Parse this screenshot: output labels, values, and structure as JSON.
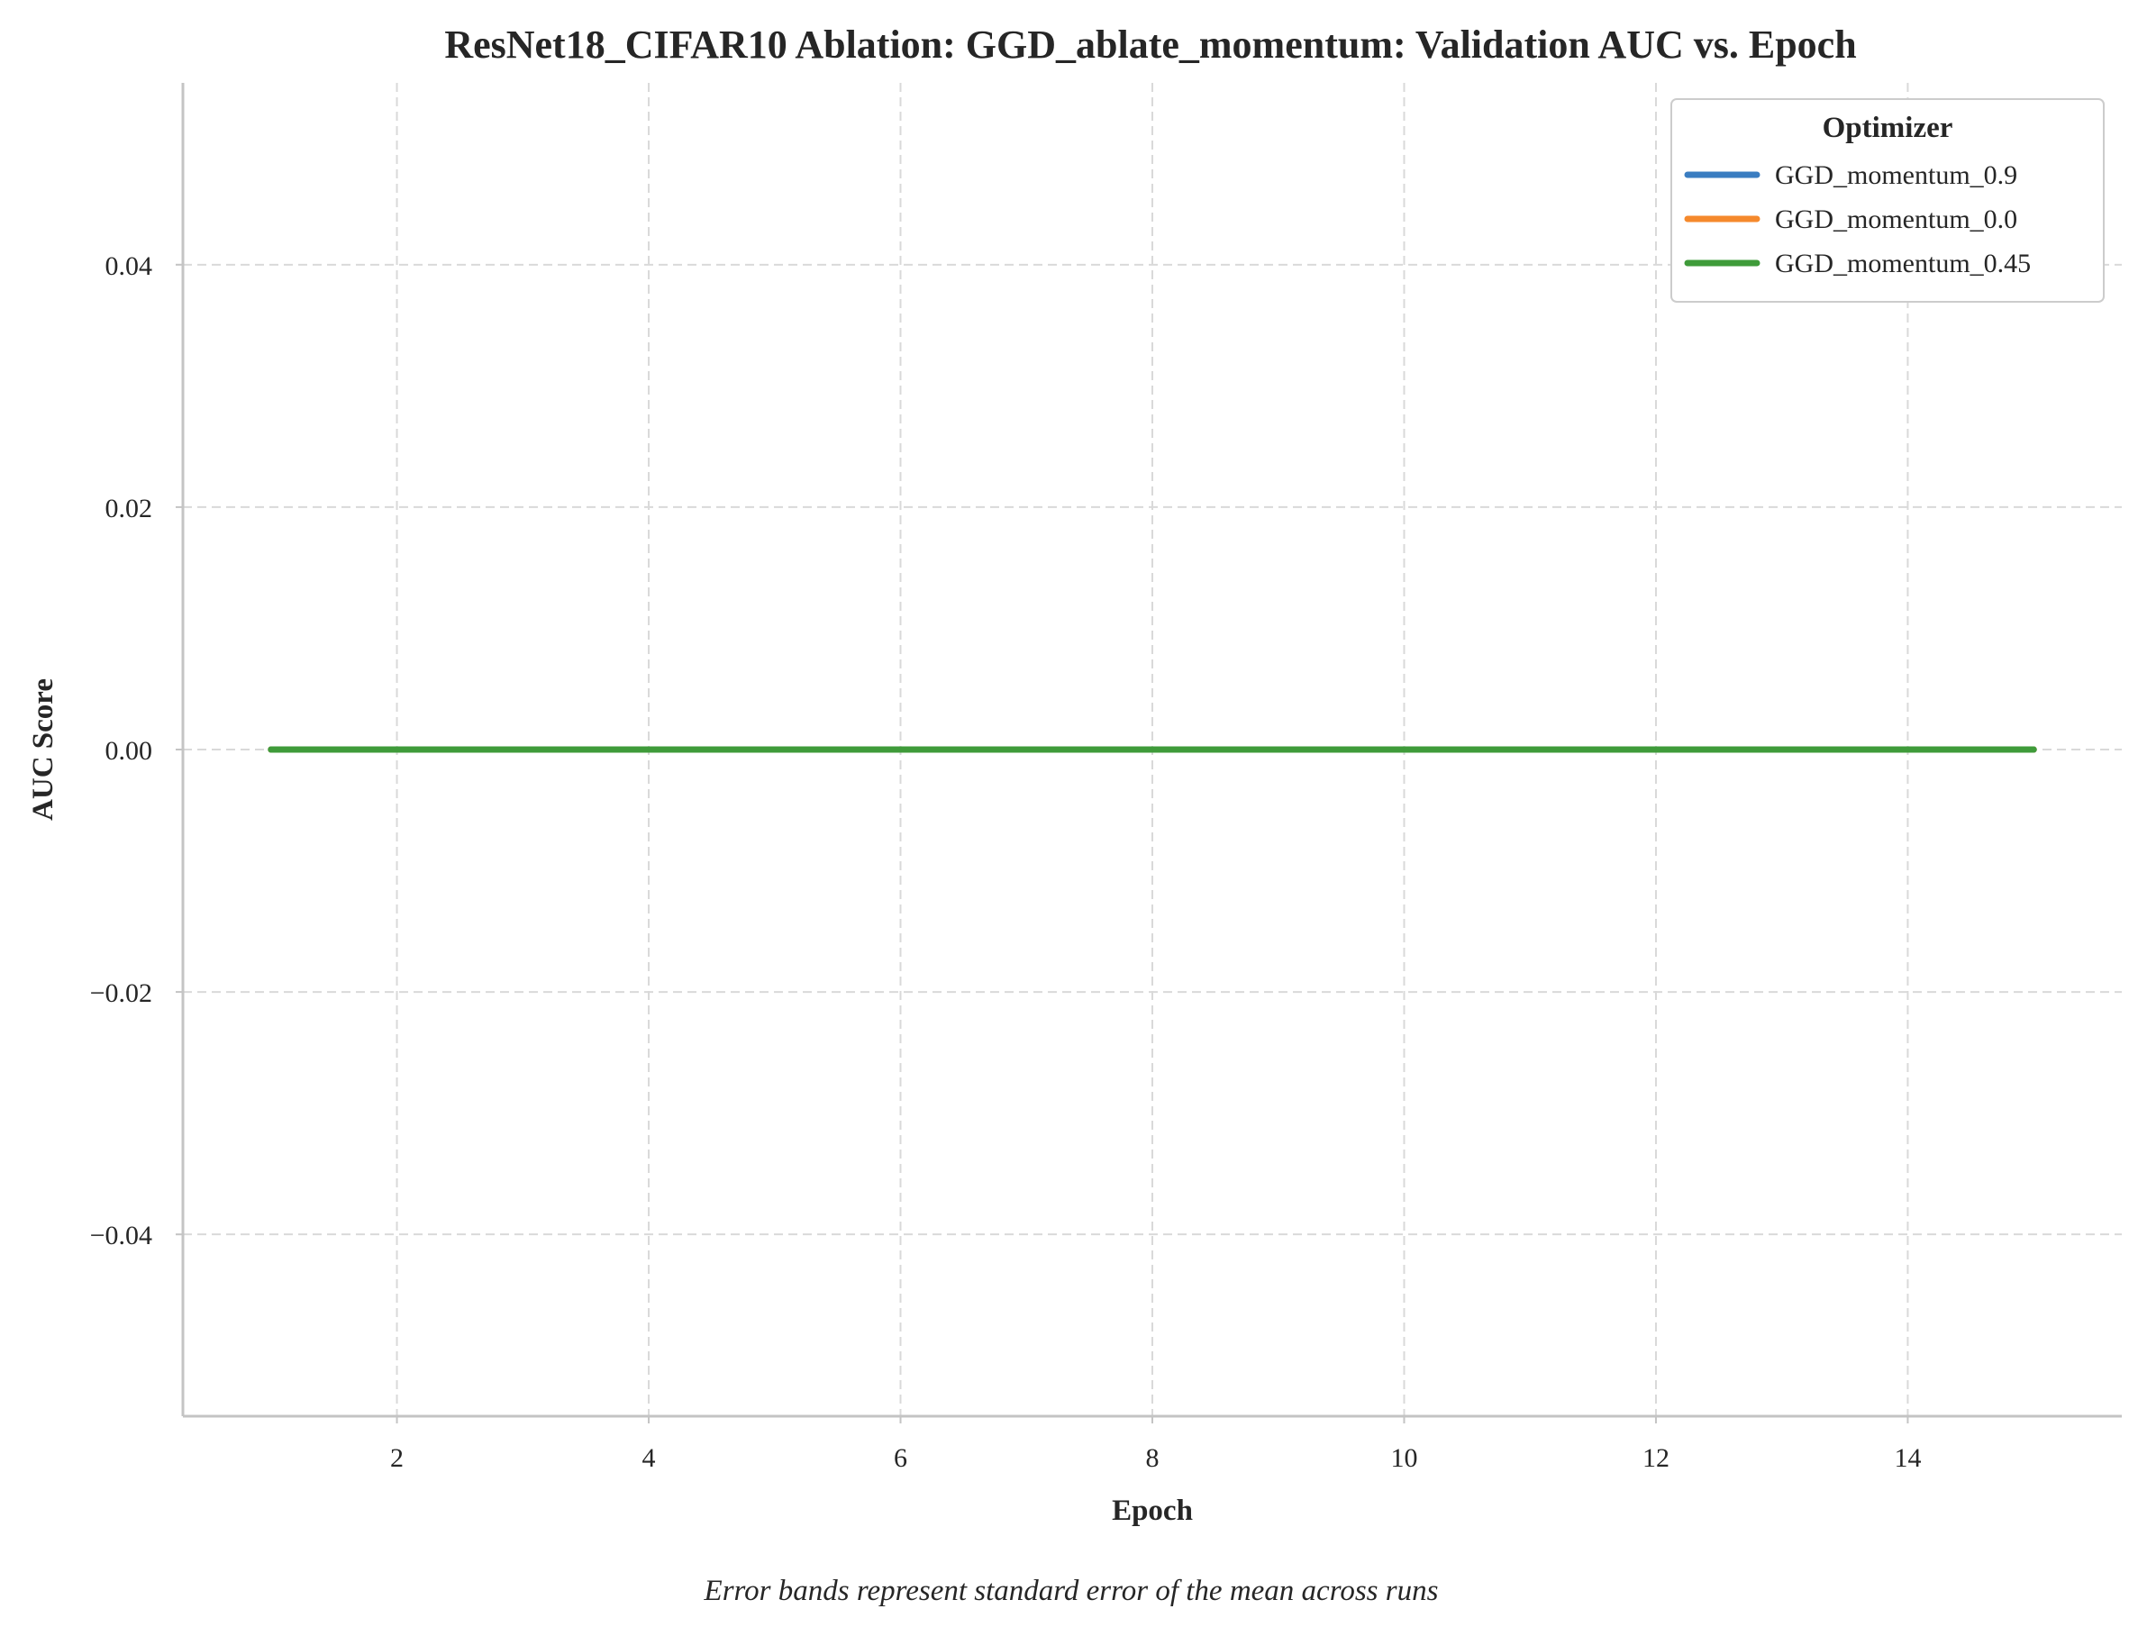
{
  "chart_data": {
    "type": "line",
    "title": "ResNet18_CIFAR10 Ablation: GGD_ablate_momentum: Validation AUC vs. Epoch",
    "xlabel": "Epoch",
    "ylabel": "AUC Score",
    "caption": "Error bands represent standard error of the mean across runs",
    "xlim": [
      0.3,
      15.7
    ],
    "ylim": [
      -0.055,
      0.055
    ],
    "xticks": [
      2,
      4,
      6,
      8,
      10,
      12,
      14
    ],
    "xtick_labels": [
      "2",
      "4",
      "6",
      "8",
      "10",
      "12",
      "14"
    ],
    "yticks": [
      -0.04,
      -0.02,
      0.0,
      0.02,
      0.04
    ],
    "ytick_labels": [
      "−0.04",
      "−0.02",
      "0.00",
      "0.02",
      "0.04"
    ],
    "grid": true,
    "legend": {
      "title": "Optimizer",
      "position": "top-right"
    },
    "x": [
      1,
      2,
      3,
      4,
      5,
      6,
      7,
      8,
      9,
      10,
      11,
      12,
      13,
      14,
      15
    ],
    "series": [
      {
        "name": "GGD_momentum_0.9",
        "color": "#3a7dc1",
        "values": [
          0,
          0,
          0,
          0,
          0,
          0,
          0,
          0,
          0,
          0,
          0,
          0,
          0,
          0,
          0
        ]
      },
      {
        "name": "GGD_momentum_0.0",
        "color": "#f5892c",
        "values": [
          0,
          0,
          0,
          0,
          0,
          0,
          0,
          0,
          0,
          0,
          0,
          0,
          0,
          0,
          0
        ]
      },
      {
        "name": "GGD_momentum_0.45",
        "color": "#3f9b3a",
        "values": [
          0,
          0,
          0,
          0,
          0,
          0,
          0,
          0,
          0,
          0,
          0,
          0,
          0,
          0,
          0
        ]
      }
    ]
  }
}
